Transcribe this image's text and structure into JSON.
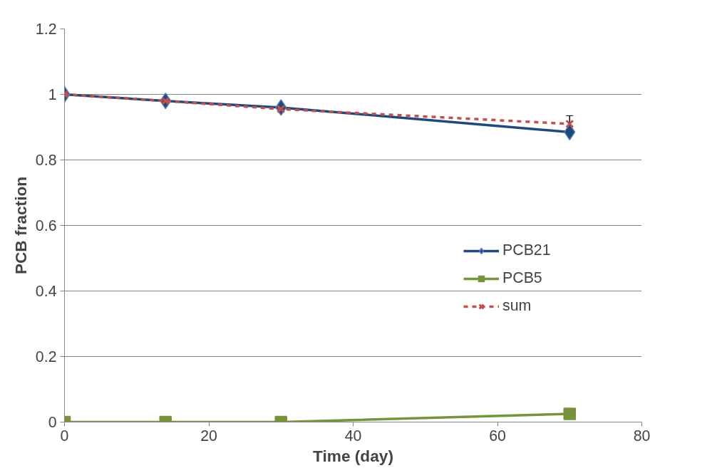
{
  "chart_data": {
    "type": "line",
    "xlabel": "Time (day)",
    "ylabel": "PCB fraction",
    "x": [
      0,
      14,
      30,
      70
    ],
    "series": [
      {
        "name": "PCB21",
        "color": "#1f497d",
        "values": [
          1,
          0.98,
          0.96,
          0.885
        ],
        "marker": "diamond",
        "line_style": "solid"
      },
      {
        "name": "PCB5",
        "color": "#77933c",
        "values": [
          0,
          0,
          0,
          0.025
        ],
        "marker": "square",
        "line_style": "solid"
      },
      {
        "name": "sum",
        "color": "#c0504d",
        "values": [
          1,
          0.98,
          0.955,
          0.91
        ],
        "marker": "cross",
        "line_style": "dashed",
        "errors": [
          null,
          null,
          null,
          0.025
        ]
      }
    ],
    "xlim": [
      0,
      80
    ],
    "xticks": [
      0,
      20,
      40,
      60,
      80
    ],
    "ylim": [
      0,
      1.2
    ],
    "yticks": [
      0,
      0.2,
      0.4,
      0.6,
      0.8,
      1,
      1.2
    ],
    "grid": "y",
    "legend": "right"
  }
}
